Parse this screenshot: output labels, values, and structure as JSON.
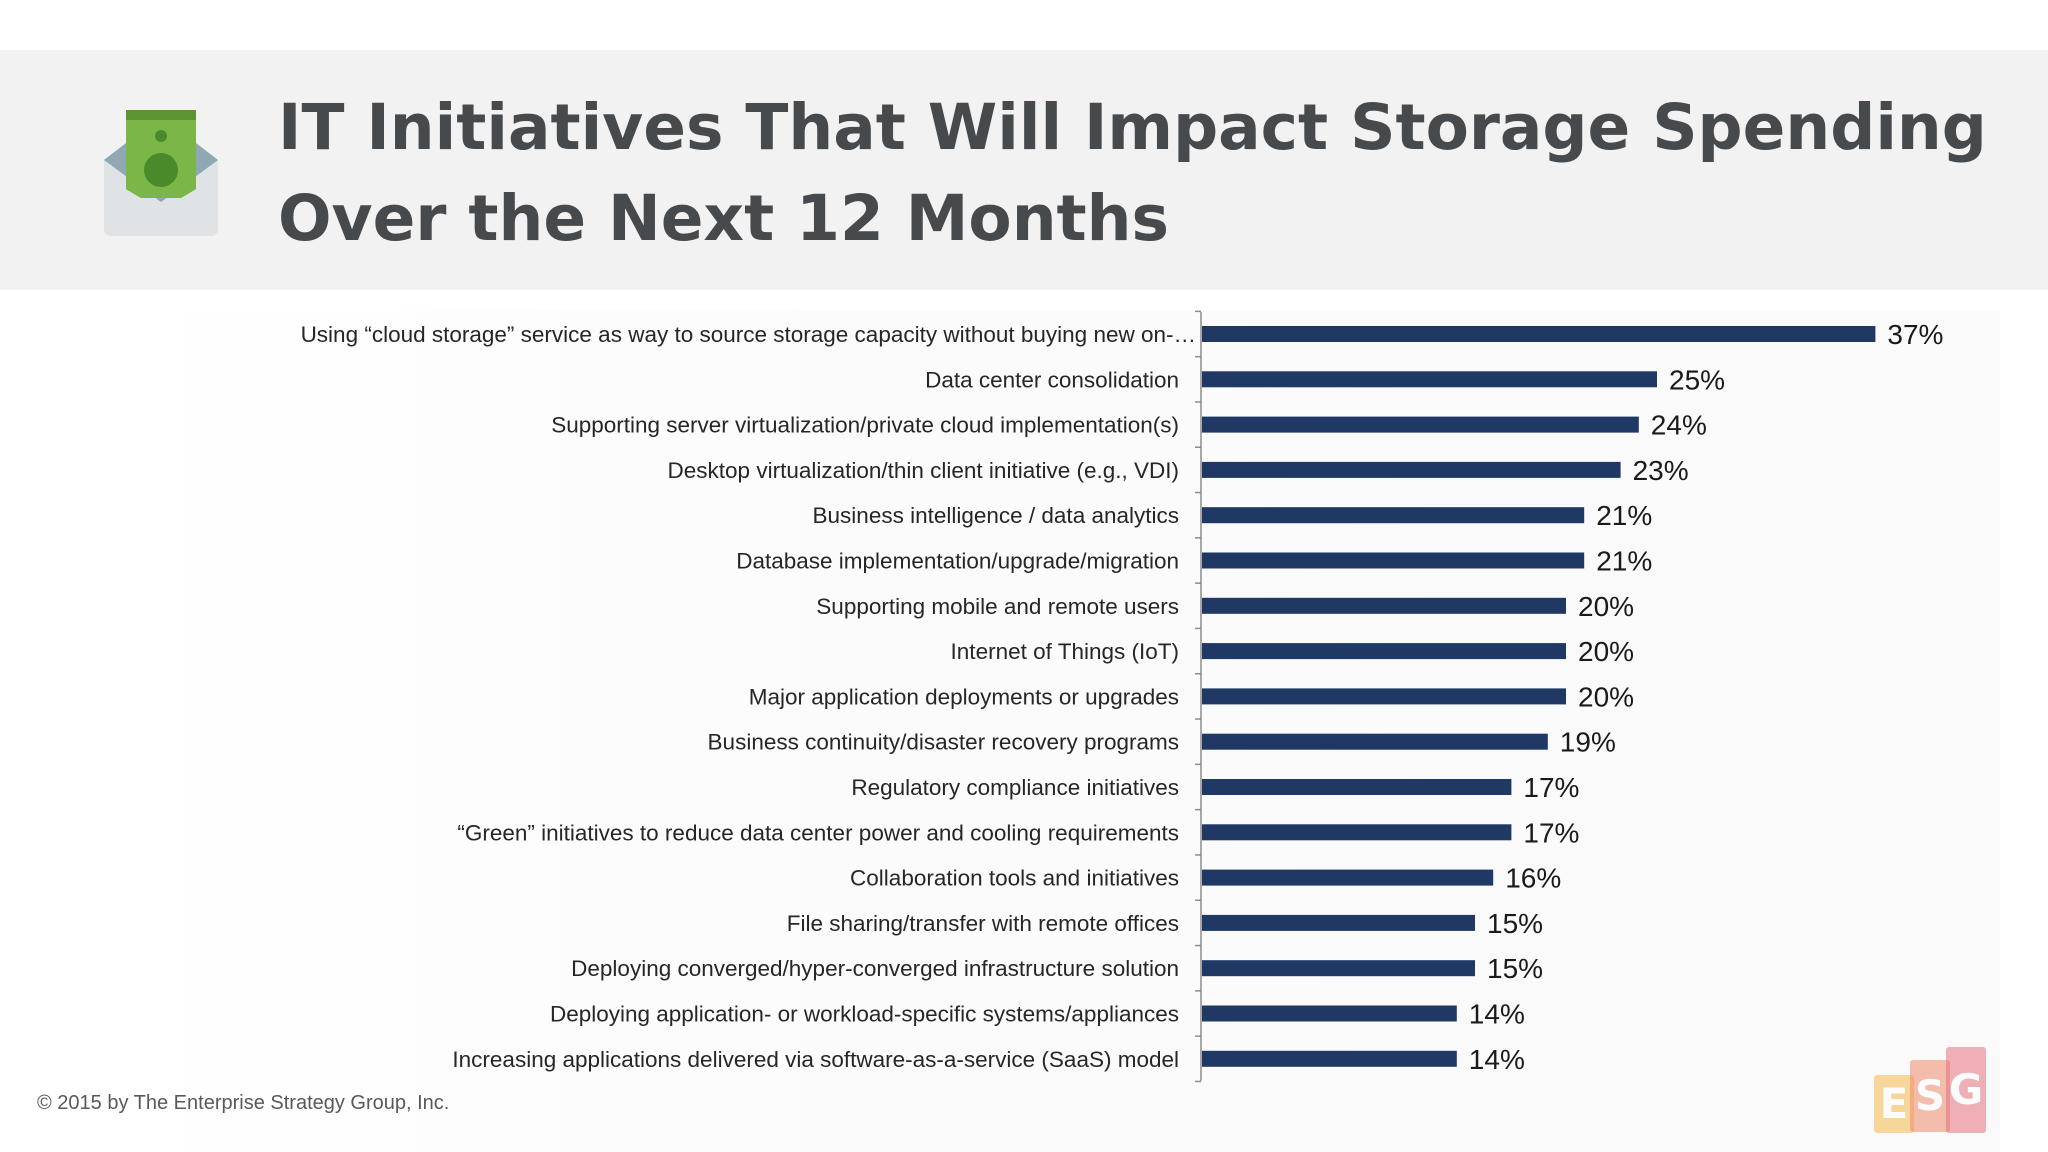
{
  "header": {
    "title_line1": "IT Initiatives That Will Impact Storage Spending",
    "title_line2": "Over the Next 12 Months",
    "icon": "money-envelope-icon"
  },
  "footer": {
    "copyright": "© 2015 by The Enterprise Strategy Group, Inc.",
    "logo_letters": [
      "E",
      "S",
      "G"
    ],
    "logo_colors": [
      "#f3b94a",
      "#ef8a6c",
      "#e5727f"
    ]
  },
  "chart_data": {
    "type": "bar",
    "orientation": "horizontal",
    "categories": [
      "Using “cloud storage” service as way to source storage capacity without buying new on-…",
      "Data center consolidation",
      "Supporting server virtualization/private cloud implementation(s)",
      "Desktop virtualization/thin client initiative (e.g., VDI)",
      "Business intelligence / data analytics",
      "Database implementation/upgrade/migration",
      "Supporting mobile and remote users",
      "Internet of Things (IoT)",
      "Major application deployments or upgrades",
      "Business continuity/disaster recovery programs",
      "Regulatory compliance initiatives",
      "“Green” initiatives to reduce data center power and cooling requirements",
      "Collaboration tools and initiatives",
      "File sharing/transfer with remote offices",
      "Deploying converged/hyper-converged infrastructure solution",
      "Deploying application- or workload-specific systems/appliances",
      "Increasing applications delivered via software-as-a-service (SaaS) model"
    ],
    "values": [
      37,
      25,
      24,
      23,
      21,
      21,
      20,
      20,
      20,
      19,
      17,
      17,
      16,
      15,
      15,
      14,
      14
    ],
    "value_labels": [
      "37%",
      "25%",
      "24%",
      "23%",
      "21%",
      "21%",
      "20%",
      "20%",
      "20%",
      "19%",
      "17%",
      "17%",
      "16%",
      "15%",
      "15%",
      "14%",
      "14%"
    ],
    "bar_color": "#1f3864",
    "grid": false,
    "legend": "none"
  }
}
